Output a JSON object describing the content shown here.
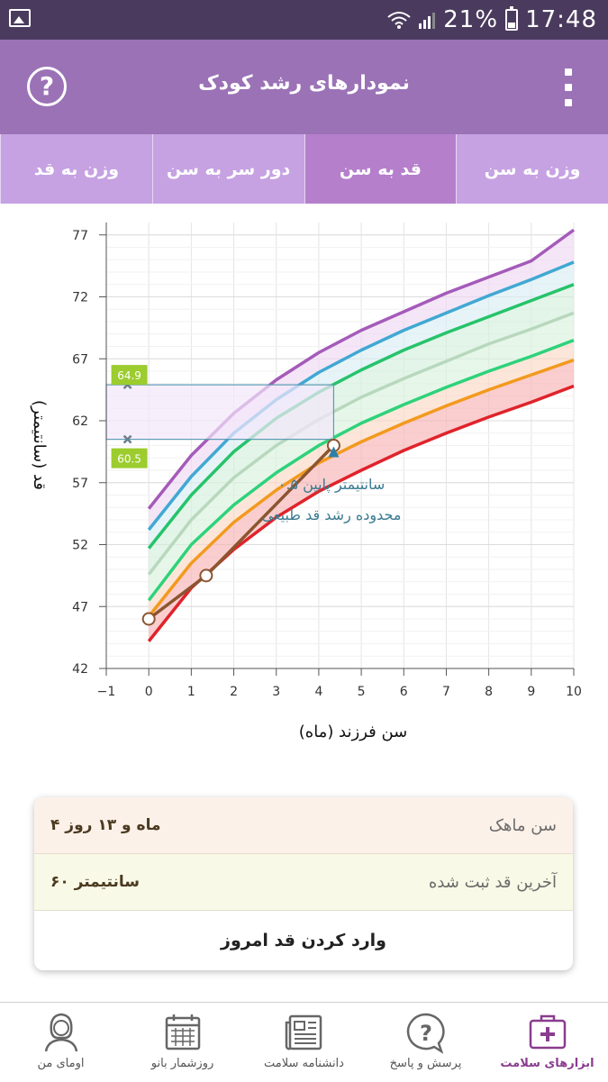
{
  "status_bar": {
    "battery": "21%",
    "time": "17:48"
  },
  "app_bar": {
    "title": "نمودارهای رشد کودک"
  },
  "tabs": [
    {
      "label": "وزن به سن",
      "active": false
    },
    {
      "label": "قد به سن",
      "active": true
    },
    {
      "label": "دور سر به سن",
      "active": false
    },
    {
      "label": "وزن به قد",
      "active": false
    }
  ],
  "chart_data": {
    "type": "line",
    "xlabel": "سن فرزند (ماه)",
    "ylabel": "قد (سانتیمتر)",
    "xlim": [
      -1,
      10
    ],
    "ylim": [
      42,
      78
    ],
    "x_ticks": [
      "−1",
      "0",
      "1",
      "2",
      "3",
      "4",
      "5",
      "6",
      "7",
      "8",
      "9",
      "10"
    ],
    "y_ticks": [
      "42",
      "47",
      "52",
      "57",
      "62",
      "67",
      "72",
      "77"
    ],
    "grid": true,
    "x": [
      0,
      1,
      2,
      3,
      4,
      5,
      6,
      7,
      8,
      9,
      10
    ],
    "series": [
      {
        "color": "#e0232b",
        "values": [
          44.2,
          48.5,
          51.6,
          54.2,
          56.3,
          58.0,
          59.6,
          61.0,
          62.3,
          63.5,
          64.8
        ]
      },
      {
        "color": "#f29a1e",
        "values": [
          46.2,
          50.5,
          53.8,
          56.4,
          58.6,
          60.3,
          61.8,
          63.2,
          64.5,
          65.7,
          66.9
        ]
      },
      {
        "color": "#2ed27b",
        "values": [
          47.5,
          52.0,
          55.2,
          57.8,
          60.0,
          61.8,
          63.3,
          64.7,
          66.0,
          67.2,
          68.5
        ]
      },
      {
        "color": "#b8d8be",
        "values": [
          49.6,
          54.0,
          57.4,
          60.0,
          62.1,
          63.9,
          65.4,
          66.8,
          68.2,
          69.4,
          70.7
        ]
      },
      {
        "color": "#27c36b",
        "values": [
          51.7,
          56.0,
          59.5,
          62.2,
          64.3,
          66.1,
          67.7,
          69.1,
          70.4,
          71.7,
          73.0
        ]
      },
      {
        "color": "#41a8d3",
        "values": [
          53.2,
          57.5,
          61.0,
          63.7,
          65.9,
          67.7,
          69.3,
          70.7,
          72.1,
          73.4,
          74.8
        ]
      },
      {
        "color": "#a55bb9",
        "values": [
          54.9,
          59.2,
          62.6,
          65.3,
          67.5,
          69.3,
          70.8,
          72.3,
          73.6,
          74.9,
          77.4
        ]
      }
    ],
    "bands": [
      "#f7b3b5",
      "#fbd9c4",
      "#d8f2dd",
      "#d4efdc",
      "#d8eef5",
      "#eed8f2"
    ],
    "measurements": [
      {
        "x": 0,
        "y": 46.0
      },
      {
        "x": 1.35,
        "y": 49.5
      },
      {
        "x": 4.35,
        "y": 60.0
      }
    ],
    "range_box": {
      "x_from": -1,
      "x_to": 4.35,
      "y_low": 60.5,
      "y_high": 64.9,
      "label_low": "60.5",
      "label_high": "64.9"
    },
    "annotation": {
      "line1": "۰.۵ سانتیمتر پایین",
      "line2": "محدوده رشد قد طبیعی"
    }
  },
  "info": {
    "age_label": "سن ماهک",
    "age_value": "۴ ماه و ۱۳ روز",
    "height_label": "آخرین قد ثبت شده",
    "height_value": "۶۰ سانتیمتر",
    "action_label": "وارد کردن قد امروز"
  },
  "bottom_nav": [
    {
      "label": "ابزارهای سلامت",
      "icon": "medical-kit-icon",
      "active": true
    },
    {
      "label": "پرسش و پاسخ",
      "icon": "question-bubble-icon",
      "active": false
    },
    {
      "label": "دانشنامه سلامت",
      "icon": "newspaper-icon",
      "active": false
    },
    {
      "label": "روزشمار بانو",
      "icon": "calendar-icon",
      "active": false
    },
    {
      "label": "اومای من",
      "icon": "user-icon",
      "active": false
    }
  ],
  "colors": {
    "status_bar": "#4a3b5e",
    "app_bar": "#9b72b6",
    "tabs": "#c6a2e2",
    "tab_active": "#b57fcc",
    "accent": "#8a3d8e"
  }
}
